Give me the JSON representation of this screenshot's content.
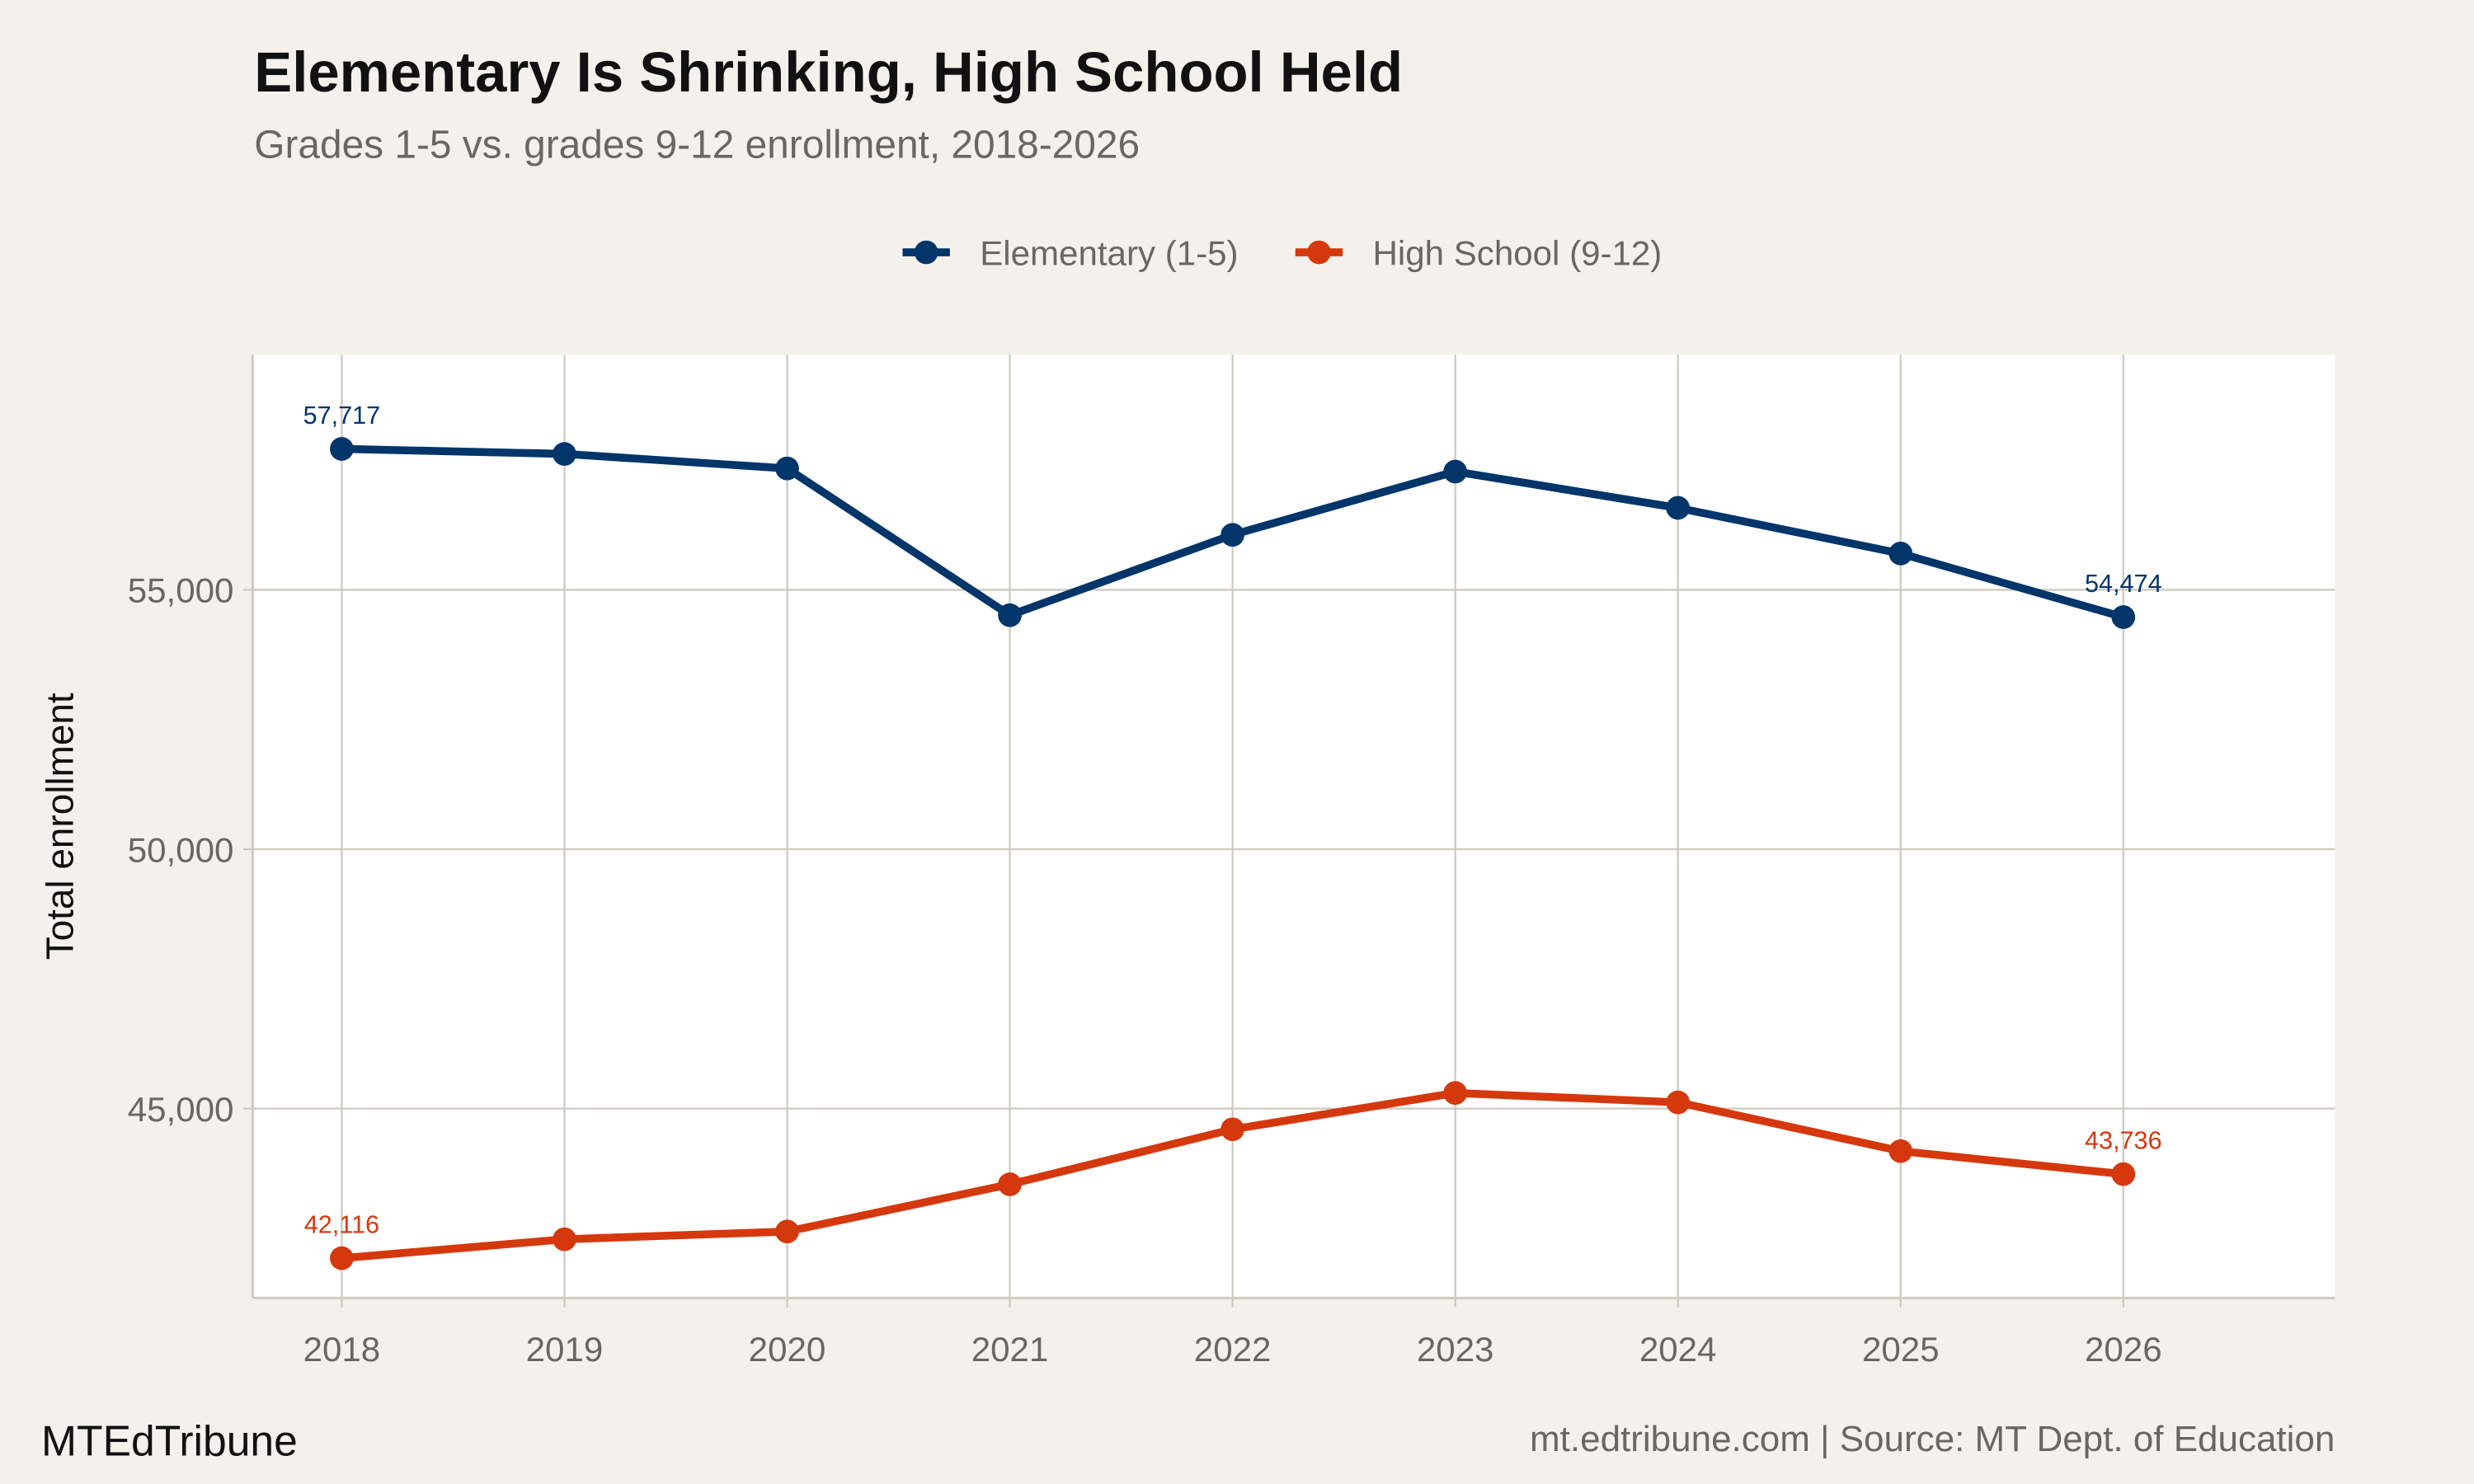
{
  "chart_data": {
    "type": "line",
    "title": "Elementary Is Shrinking, High School Held",
    "subtitle": "Grades 1-5 vs. grades 9-12 enrollment, 2018-2026",
    "xlabel": "",
    "ylabel": "Total enrollment",
    "x": [
      2018,
      2019,
      2020,
      2021,
      2022,
      2023,
      2024,
      2025,
      2026
    ],
    "x_ticks": [
      "2018",
      "2019",
      "2020",
      "2021",
      "2022",
      "2023",
      "2024",
      "2025",
      "2026"
    ],
    "y_ticks": [
      45000,
      50000,
      55000
    ],
    "y_tick_labels": [
      "45,000",
      "50,000",
      "55,000"
    ],
    "xlim": [
      2017.6,
      2026.95
    ],
    "ylim": [
      41350,
      59530
    ],
    "grid": true,
    "legend_position": "top",
    "series": [
      {
        "name": "Elementary (1-5)",
        "color": "#02356a",
        "values": [
          57717,
          57620,
          57340,
          54510,
          56060,
          57280,
          56580,
          55700,
          54474
        ],
        "labels": [
          {
            "index": 0,
            "text": "57,717"
          },
          {
            "index": 8,
            "text": "54,474"
          }
        ]
      },
      {
        "name": "High School (9-12)",
        "color": "#d5380d",
        "values": [
          42116,
          42480,
          42630,
          43540,
          44600,
          45300,
          45120,
          44180,
          43736
        ],
        "labels": [
          {
            "index": 0,
            "text": "42,116"
          },
          {
            "index": 8,
            "text": "43,736"
          }
        ]
      }
    ]
  },
  "footer": {
    "brand": "MTEdTribune",
    "caption": "mt.edtribune.com | Source: MT Dept. of Education"
  },
  "colors": {
    "background": "#f4f1ec",
    "panel": "#ffffff",
    "grid": "#cfc9bf"
  }
}
